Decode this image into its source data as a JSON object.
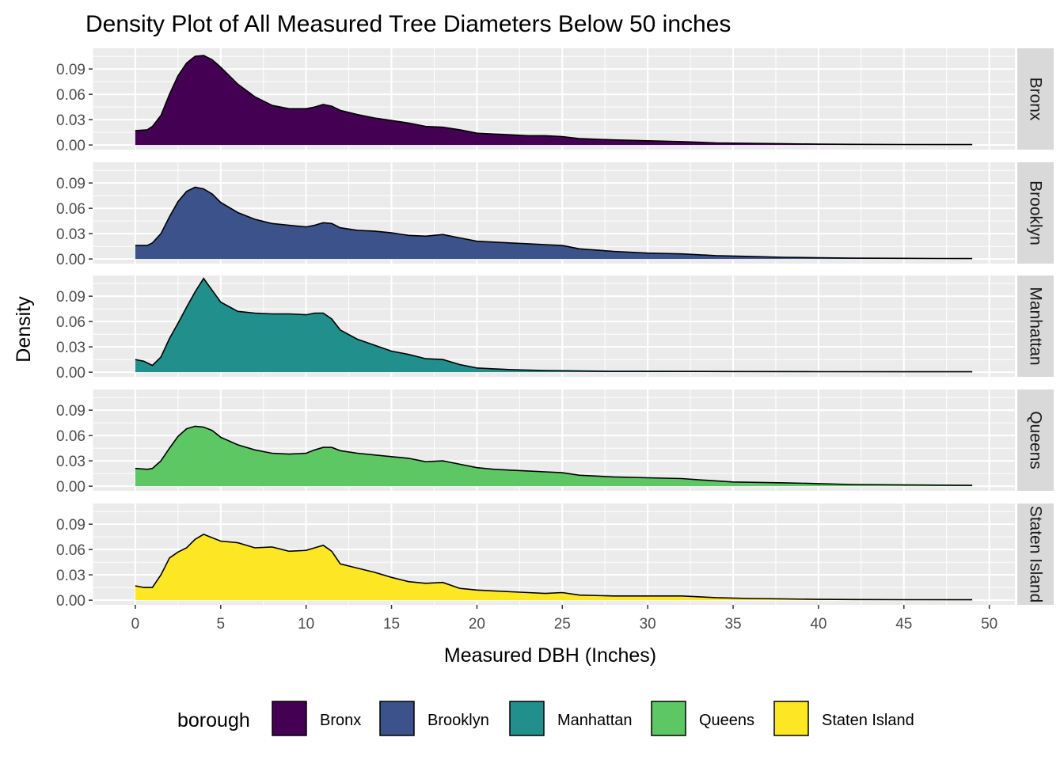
{
  "chart_data": {
    "type": "area",
    "title": "Density Plot of All Measured Tree Diameters Below 50 inches",
    "xlabel": "Measured DBH (Inches)",
    "ylabel": "Density",
    "xlim": [
      -2.5,
      51.5
    ],
    "ylim": [
      -0.0055,
      0.1145
    ],
    "x_ticks": [
      0,
      5,
      10,
      15,
      20,
      25,
      30,
      35,
      40,
      45,
      50
    ],
    "x_tick_labels": [
      "0",
      "5",
      "10",
      "15",
      "20",
      "25",
      "30",
      "35",
      "40",
      "45",
      "50"
    ],
    "y_ticks": [
      0,
      0.03,
      0.06,
      0.09
    ],
    "y_tick_labels": [
      "0.00",
      "0.03",
      "0.06",
      "0.09"
    ],
    "grid": true,
    "legend_title": "borough",
    "legend_position": "bottom",
    "series": [
      {
        "name": "Bronx",
        "color": "#440154",
        "points": [
          [
            0,
            0.017
          ],
          [
            0.7,
            0.018
          ],
          [
            1,
            0.022
          ],
          [
            1.5,
            0.035
          ],
          [
            2,
            0.06
          ],
          [
            2.5,
            0.082
          ],
          [
            3,
            0.097
          ],
          [
            3.5,
            0.105
          ],
          [
            4,
            0.106
          ],
          [
            4.5,
            0.101
          ],
          [
            5,
            0.092
          ],
          [
            6,
            0.072
          ],
          [
            7,
            0.057
          ],
          [
            8,
            0.047
          ],
          [
            9,
            0.043
          ],
          [
            10,
            0.043
          ],
          [
            10.5,
            0.045
          ],
          [
            11,
            0.048
          ],
          [
            11.5,
            0.046
          ],
          [
            12,
            0.041
          ],
          [
            13,
            0.036
          ],
          [
            14,
            0.032
          ],
          [
            15,
            0.029
          ],
          [
            16,
            0.026
          ],
          [
            17,
            0.022
          ],
          [
            18,
            0.021
          ],
          [
            19,
            0.018
          ],
          [
            20,
            0.014
          ],
          [
            21,
            0.013
          ],
          [
            22,
            0.012
          ],
          [
            23,
            0.011
          ],
          [
            24,
            0.011
          ],
          [
            25,
            0.01
          ],
          [
            26,
            0.0075
          ],
          [
            28,
            0.006
          ],
          [
            30,
            0.005
          ],
          [
            32,
            0.004
          ],
          [
            34,
            0.0025
          ],
          [
            36,
            0.002
          ],
          [
            38,
            0.0015
          ],
          [
            40,
            0.001
          ],
          [
            42,
            0.0008
          ],
          [
            45,
            0.0006
          ],
          [
            47,
            0.0005
          ],
          [
            49,
            0.0005
          ]
        ]
      },
      {
        "name": "Brooklyn",
        "color": "#3b528b",
        "points": [
          [
            0,
            0.016
          ],
          [
            0.7,
            0.016
          ],
          [
            1,
            0.019
          ],
          [
            1.5,
            0.03
          ],
          [
            2,
            0.05
          ],
          [
            2.5,
            0.068
          ],
          [
            3,
            0.08
          ],
          [
            3.5,
            0.085
          ],
          [
            4,
            0.083
          ],
          [
            4.5,
            0.077
          ],
          [
            5,
            0.067
          ],
          [
            6,
            0.055
          ],
          [
            7,
            0.047
          ],
          [
            8,
            0.042
          ],
          [
            9,
            0.04
          ],
          [
            10,
            0.038
          ],
          [
            10.5,
            0.04
          ],
          [
            11,
            0.043
          ],
          [
            11.5,
            0.042
          ],
          [
            12,
            0.037
          ],
          [
            13,
            0.034
          ],
          [
            14,
            0.033
          ],
          [
            15,
            0.031
          ],
          [
            16,
            0.028
          ],
          [
            17,
            0.027
          ],
          [
            18,
            0.029
          ],
          [
            19,
            0.025
          ],
          [
            20,
            0.021
          ],
          [
            21,
            0.02
          ],
          [
            22,
            0.019
          ],
          [
            23,
            0.018
          ],
          [
            24,
            0.017
          ],
          [
            25,
            0.016
          ],
          [
            26,
            0.012
          ],
          [
            28,
            0.009
          ],
          [
            30,
            0.007
          ],
          [
            32,
            0.006
          ],
          [
            34,
            0.004
          ],
          [
            36,
            0.003
          ],
          [
            38,
            0.002
          ],
          [
            40,
            0.0015
          ],
          [
            42,
            0.001
          ],
          [
            45,
            0.0008
          ],
          [
            47,
            0.0006
          ],
          [
            49,
            0.0005
          ]
        ]
      },
      {
        "name": "Manhattan",
        "color": "#21908c",
        "points": [
          [
            0,
            0.015
          ],
          [
            0.5,
            0.013
          ],
          [
            1,
            0.008
          ],
          [
            1.5,
            0.018
          ],
          [
            2,
            0.04
          ],
          [
            2.5,
            0.058
          ],
          [
            3,
            0.077
          ],
          [
            3.5,
            0.095
          ],
          [
            4,
            0.111
          ],
          [
            4.5,
            0.097
          ],
          [
            5,
            0.083
          ],
          [
            6,
            0.072
          ],
          [
            7,
            0.07
          ],
          [
            8,
            0.069
          ],
          [
            9,
            0.069
          ],
          [
            10,
            0.068
          ],
          [
            10.5,
            0.07
          ],
          [
            11,
            0.07
          ],
          [
            11.5,
            0.063
          ],
          [
            12,
            0.05
          ],
          [
            13,
            0.039
          ],
          [
            14,
            0.032
          ],
          [
            15,
            0.025
          ],
          [
            16,
            0.021
          ],
          [
            17,
            0.016
          ],
          [
            18,
            0.015
          ],
          [
            19,
            0.009
          ],
          [
            20,
            0.005
          ],
          [
            21,
            0.004
          ],
          [
            22,
            0.003
          ],
          [
            24,
            0.002
          ],
          [
            26,
            0.0015
          ],
          [
            28,
            0.001
          ],
          [
            30,
            0.001
          ],
          [
            35,
            0.0008
          ],
          [
            40,
            0.0006
          ],
          [
            45,
            0.0005
          ],
          [
            49,
            0.0005
          ]
        ]
      },
      {
        "name": "Queens",
        "color": "#5dc863",
        "points": [
          [
            0,
            0.021
          ],
          [
            0.7,
            0.02
          ],
          [
            1,
            0.021
          ],
          [
            1.5,
            0.03
          ],
          [
            2,
            0.045
          ],
          [
            2.5,
            0.059
          ],
          [
            3,
            0.068
          ],
          [
            3.5,
            0.071
          ],
          [
            4,
            0.07
          ],
          [
            4.5,
            0.066
          ],
          [
            5,
            0.058
          ],
          [
            6,
            0.049
          ],
          [
            7,
            0.043
          ],
          [
            8,
            0.039
          ],
          [
            9,
            0.038
          ],
          [
            10,
            0.039
          ],
          [
            10.5,
            0.043
          ],
          [
            11,
            0.046
          ],
          [
            11.5,
            0.046
          ],
          [
            12,
            0.042
          ],
          [
            13,
            0.039
          ],
          [
            14,
            0.037
          ],
          [
            15,
            0.035
          ],
          [
            16,
            0.033
          ],
          [
            17,
            0.029
          ],
          [
            18,
            0.03
          ],
          [
            19,
            0.026
          ],
          [
            20,
            0.022
          ],
          [
            21,
            0.02
          ],
          [
            22,
            0.019
          ],
          [
            23,
            0.018
          ],
          [
            24,
            0.017
          ],
          [
            25,
            0.016
          ],
          [
            26,
            0.013
          ],
          [
            28,
            0.011
          ],
          [
            30,
            0.01
          ],
          [
            32,
            0.009
          ],
          [
            33,
            0.0075
          ],
          [
            35,
            0.005
          ],
          [
            38,
            0.004
          ],
          [
            40,
            0.003
          ],
          [
            42,
            0.002
          ],
          [
            45,
            0.0015
          ],
          [
            49,
            0.001
          ]
        ]
      },
      {
        "name": "Staten Island",
        "color": "#fde725",
        "points": [
          [
            0,
            0.017
          ],
          [
            0.5,
            0.015
          ],
          [
            1,
            0.015
          ],
          [
            1.5,
            0.03
          ],
          [
            2,
            0.05
          ],
          [
            2.5,
            0.057
          ],
          [
            3,
            0.062
          ],
          [
            3.5,
            0.072
          ],
          [
            4,
            0.078
          ],
          [
            4.5,
            0.074
          ],
          [
            5,
            0.07
          ],
          [
            6,
            0.068
          ],
          [
            7,
            0.062
          ],
          [
            8,
            0.063
          ],
          [
            9,
            0.058
          ],
          [
            10,
            0.059
          ],
          [
            10.5,
            0.062
          ],
          [
            11,
            0.065
          ],
          [
            11.5,
            0.058
          ],
          [
            12,
            0.043
          ],
          [
            13,
            0.038
          ],
          [
            14,
            0.033
          ],
          [
            15,
            0.027
          ],
          [
            16,
            0.022
          ],
          [
            17,
            0.02
          ],
          [
            18,
            0.021
          ],
          [
            19,
            0.014
          ],
          [
            20,
            0.012
          ],
          [
            21,
            0.011
          ],
          [
            22,
            0.01
          ],
          [
            23,
            0.009
          ],
          [
            24,
            0.008
          ],
          [
            25,
            0.009
          ],
          [
            26,
            0.006
          ],
          [
            28,
            0.005
          ],
          [
            30,
            0.005
          ],
          [
            32,
            0.005
          ],
          [
            34,
            0.003
          ],
          [
            36,
            0.002
          ],
          [
            38,
            0.0015
          ],
          [
            40,
            0.001
          ],
          [
            42,
            0.0008
          ],
          [
            45,
            0.0006
          ],
          [
            49,
            0.0005
          ]
        ]
      }
    ]
  }
}
